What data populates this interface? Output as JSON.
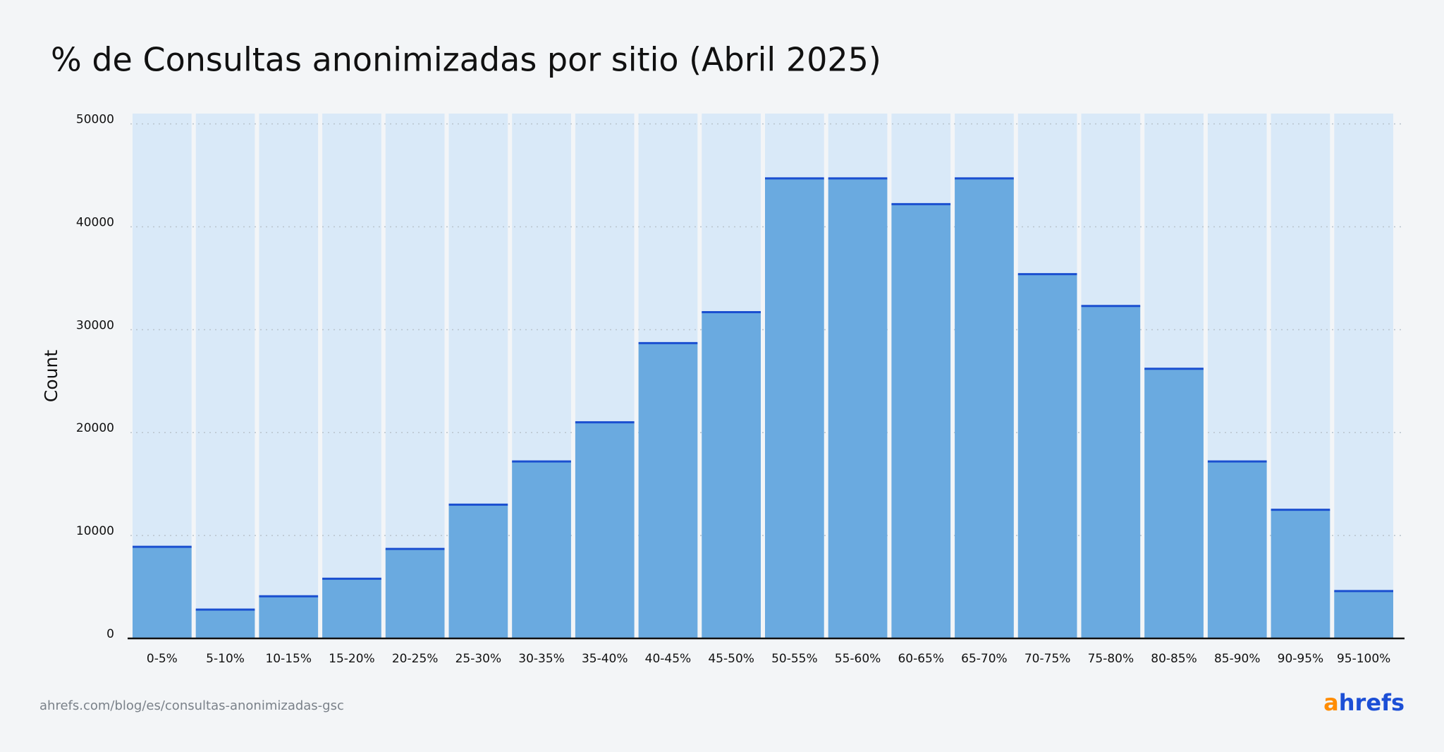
{
  "chart_data": {
    "type": "bar",
    "title": "% de Consultas anonimizadas por sitio (Abril 2025)",
    "y_label": "Count",
    "categories": [
      "0-5%",
      "5-10%",
      "10-15%",
      "15-20%",
      "20-25%",
      "25-30%",
      "30-35%",
      "35-40%",
      "40-45%",
      "45-50%",
      "50-55%",
      "55-60%",
      "60-65%",
      "65-70%",
      "70-75%",
      "75-80%",
      "80-85%",
      "85-90%",
      "90-95%",
      "95-100%"
    ],
    "values": [
      8900,
      2800,
      4100,
      5800,
      8700,
      13000,
      17200,
      21000,
      28700,
      31700,
      44700,
      44700,
      42200,
      44700,
      35400,
      32300,
      26200,
      17200,
      12500,
      4600
    ],
    "color": "#6aaae0",
    "edge_color": "#1a4fd0",
    "background_bar_color": "#d9e9f8",
    "ylim": [
      0,
      51000
    ],
    "yticks": [
      0,
      10000,
      20000,
      30000,
      40000,
      50000
    ],
    "grid": true,
    "source": "ahrefs.com/blog/es/consultas-anonimizadas-gsc",
    "logo": "ahrefs"
  }
}
